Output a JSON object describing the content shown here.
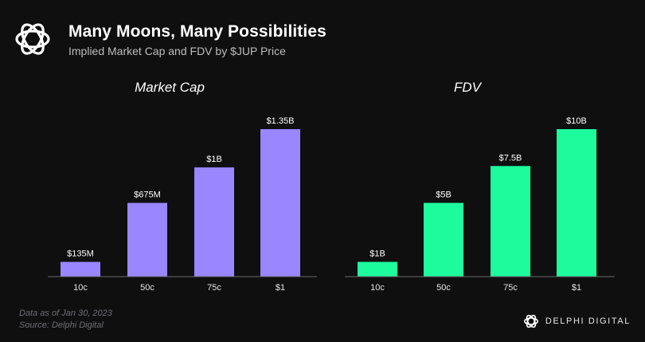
{
  "header": {
    "title": "Many Moons, Many Possibilities",
    "subtitle": "Implied Market Cap and FDV by $JUP Price",
    "logo_icon": "delphi-knot-icon"
  },
  "chart_data": [
    {
      "type": "bar",
      "title": "Market Cap",
      "categories": [
        "10c",
        "50c",
        "75c",
        "$1"
      ],
      "values": [
        135,
        675,
        1000,
        1350
      ],
      "unit": "millions USD",
      "data_labels": [
        "$135M",
        "$675M",
        "$1B",
        "$1.35B"
      ],
      "color": "#9a86ff",
      "grid": false,
      "ylim": [
        0,
        1350
      ]
    },
    {
      "type": "bar",
      "title": "FDV",
      "categories": [
        "10c",
        "50c",
        "75c",
        "$1"
      ],
      "values": [
        1,
        5,
        7.5,
        10
      ],
      "unit": "billions USD",
      "data_labels": [
        "$1B",
        "$5B",
        "$7.5B",
        "$10B"
      ],
      "color": "#1dfc9d",
      "grid": false,
      "ylim": [
        0,
        10
      ]
    }
  ],
  "footer": {
    "date_note": "Data as of Jan 30, 2023",
    "source": "Source: Delphi Digital"
  },
  "brand": {
    "name": "DELPHI DIGITAL",
    "icon": "delphi-knot-icon"
  }
}
